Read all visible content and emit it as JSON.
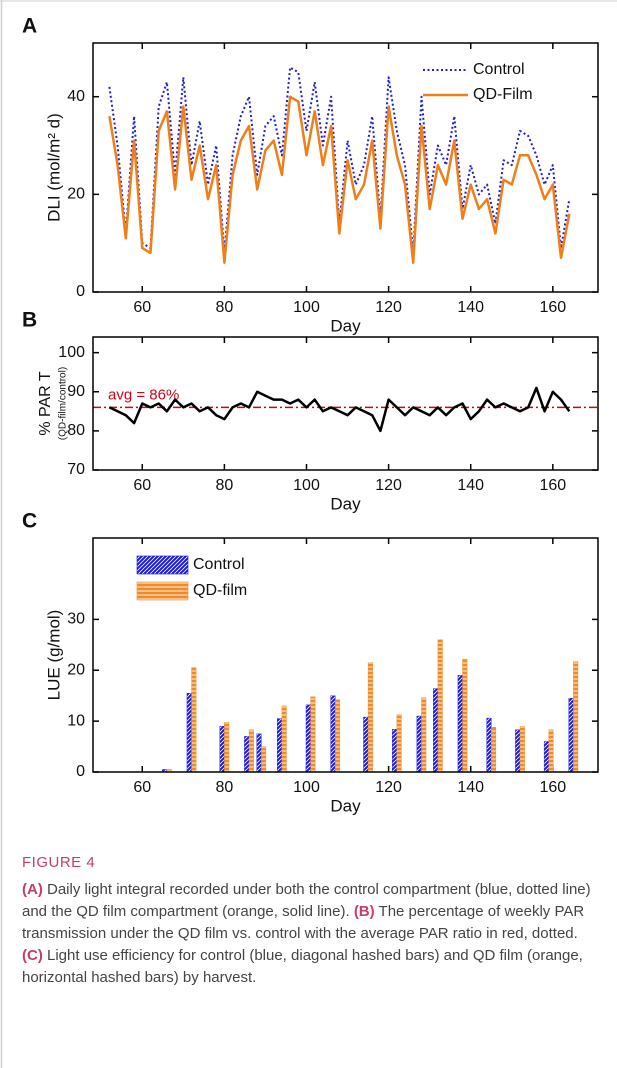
{
  "chart_data": [
    {
      "type": "line",
      "panel": "A",
      "xlabel": "Day",
      "ylabel": "DLI (mol/m² d)",
      "x": [
        52,
        54,
        56,
        58,
        60,
        62,
        64,
        66,
        68,
        70,
        72,
        74,
        76,
        78,
        80,
        82,
        84,
        86,
        88,
        90,
        92,
        94,
        96,
        98,
        100,
        102,
        104,
        106,
        108,
        110,
        112,
        114,
        116,
        118,
        120,
        122,
        124,
        126,
        128,
        130,
        132,
        134,
        136,
        138,
        140,
        142,
        144,
        146,
        148,
        150,
        152,
        154,
        156,
        158,
        160,
        162,
        164
      ],
      "series": [
        {
          "name": "Control",
          "color": "#1f1fd0",
          "dash": "dotted",
          "values": [
            42,
            30,
            12,
            36,
            10,
            9,
            38,
            43,
            24,
            44,
            26,
            35,
            22,
            30,
            8,
            28,
            36,
            40,
            24,
            34,
            36,
            28,
            46,
            45,
            33,
            43,
            30,
            40,
            14,
            31,
            22,
            26,
            36,
            15,
            44,
            33,
            26,
            8,
            40,
            20,
            30,
            26,
            36,
            17,
            26,
            20,
            22,
            14,
            27,
            26,
            33,
            32,
            28,
            22,
            26,
            9,
            19
          ]
        },
        {
          "name": "QD-Film",
          "color": "#f07f1a",
          "dash": "solid",
          "values": [
            36,
            26,
            11,
            31,
            9,
            8,
            33,
            37,
            21,
            38,
            23,
            30,
            19,
            26,
            6,
            24,
            31,
            34,
            21,
            29,
            31,
            24,
            40,
            39,
            28,
            37,
            26,
            34,
            12,
            27,
            19,
            22,
            31,
            13,
            38,
            28,
            22,
            6,
            34,
            17,
            26,
            22,
            31,
            15,
            22,
            17,
            19,
            12,
            23,
            22,
            28,
            28,
            24,
            19,
            22,
            7,
            16
          ]
        }
      ],
      "xlim": [
        48,
        171
      ],
      "xticks": [
        60,
        80,
        100,
        120,
        140,
        160
      ],
      "ylim": [
        0,
        51
      ],
      "yticks": [
        0,
        20,
        40
      ],
      "legend": "upper right"
    },
    {
      "type": "line",
      "panel": "B",
      "xlabel": "Day",
      "ylabel": "% PAR T",
      "ylabel_sub": "(QD-film/control)",
      "x": [
        52,
        54,
        56,
        58,
        60,
        62,
        64,
        66,
        68,
        70,
        72,
        74,
        76,
        78,
        80,
        82,
        84,
        86,
        88,
        90,
        92,
        94,
        96,
        98,
        100,
        102,
        104,
        106,
        108,
        110,
        112,
        114,
        116,
        118,
        120,
        122,
        124,
        126,
        128,
        130,
        132,
        134,
        136,
        138,
        140,
        142,
        144,
        146,
        148,
        150,
        152,
        154,
        156,
        158,
        160,
        162,
        164
      ],
      "values": [
        86,
        85,
        84,
        82,
        87,
        86,
        87,
        85,
        88,
        86,
        87,
        85,
        86,
        84,
        83,
        86,
        87,
        86,
        90,
        89,
        88,
        88,
        87,
        88,
        86,
        88,
        85,
        86,
        85,
        84,
        86,
        85,
        84,
        80,
        88,
        86,
        84,
        86,
        85,
        84,
        86,
        84,
        86,
        87,
        83,
        85,
        88,
        86,
        87,
        86,
        85,
        86,
        91,
        85,
        90,
        88,
        85
      ],
      "color": "#000000",
      "reference_line": {
        "value": 86,
        "label": "avg = 86%",
        "color": "#d0021b"
      },
      "xlim": [
        48,
        171
      ],
      "xticks": [
        60,
        80,
        100,
        120,
        140,
        160
      ],
      "ylim": [
        70,
        104
      ],
      "yticks": [
        70,
        80,
        90,
        100
      ]
    },
    {
      "type": "bar",
      "panel": "C",
      "xlabel": "Day",
      "ylabel": "LUE (g/mol)",
      "x": [
        66,
        72,
        80,
        86,
        89,
        94,
        101,
        107,
        115,
        122,
        128,
        132,
        138,
        145,
        152,
        159,
        165
      ],
      "series": [
        {
          "name": "Control",
          "color": "#1a1ad6",
          "hatch": "diagonal",
          "values": [
            0.5,
            15.5,
            9,
            7,
            7.5,
            10.5,
            13.2,
            15,
            10.8,
            8.4,
            11,
            16.4,
            19,
            10.6,
            8.3,
            6,
            14.5
          ]
        },
        {
          "name": "QD-film",
          "color": "#f08a24",
          "hatch": "horizontal",
          "values": [
            0.5,
            20.5,
            9.8,
            8.3,
            5,
            13,
            14.8,
            14.2,
            21.5,
            11.3,
            14.6,
            26,
            22.2,
            8.8,
            9,
            8.3,
            21.7
          ]
        }
      ],
      "xlim": [
        48,
        171
      ],
      "xticks": [
        60,
        80,
        100,
        120,
        140,
        160
      ],
      "ylim": [
        0,
        46
      ],
      "yticks": [
        0,
        10,
        20,
        30
      ],
      "legend": "upper left"
    }
  ],
  "caption": {
    "label": "FIGURE 4",
    "segments": [
      {
        "text": "(A)",
        "bold": true
      },
      {
        "text": " Daily light integral recorded under both the control compartment (blue, dotted line) and the QD film compartment (orange, solid line). ",
        "bold": false
      },
      {
        "text": "(B)",
        "bold": true
      },
      {
        "text": " The percentage of weekly PAR transmission under the QD film vs. control with the average PAR ratio in red, dotted. ",
        "bold": false
      },
      {
        "text": "(C)",
        "bold": true
      },
      {
        "text": " Light use efficiency for control (blue, diagonal hashed bars) and QD film (orange, horizontal hashed bars) by harvest.",
        "bold": false
      }
    ]
  }
}
